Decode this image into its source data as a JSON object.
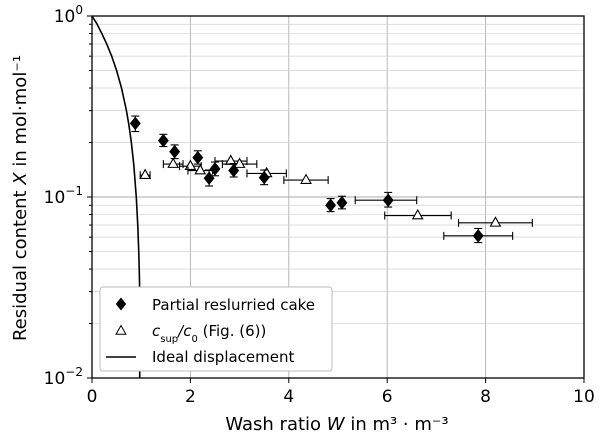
{
  "chart_data": {
    "type": "scatter",
    "x_axis": {
      "label_prefix": "Wash ratio ",
      "label_var": "W",
      "label_suffix": " in m³ · m⁻³",
      "scale": "linear",
      "lim": [
        0,
        10
      ],
      "ticks": [
        0,
        2,
        4,
        6,
        8,
        10
      ],
      "tick_labels": [
        "0",
        "2",
        "4",
        "6",
        "8",
        "10"
      ]
    },
    "y_axis": {
      "label_prefix": "Residual content ",
      "label_var": "X",
      "label_suffix": " in mol·mol⁻¹",
      "scale": "log",
      "lim": [
        0.01,
        1
      ],
      "ticks": [
        0.01,
        0.1,
        1
      ],
      "tick_labels": [
        {
          "base": "10",
          "exp": "−2"
        },
        {
          "base": "10",
          "exp": "−1"
        },
        {
          "base": "10",
          "exp": "0"
        }
      ]
    },
    "grid": true,
    "legend_position": "lower-left",
    "series": [
      {
        "name": "Partial reslurried cake",
        "marker": "filled-diamond",
        "color": "#000000",
        "points": [
          {
            "x": 0.88,
            "y": 0.255,
            "ylo": 0.23,
            "yhi": 0.28
          },
          {
            "x": 1.45,
            "y": 0.205,
            "ylo": 0.19,
            "yhi": 0.222
          },
          {
            "x": 1.68,
            "y": 0.178,
            "ylo": 0.163,
            "yhi": 0.194
          },
          {
            "x": 2.15,
            "y": 0.165,
            "ylo": 0.152,
            "yhi": 0.18
          },
          {
            "x": 2.38,
            "y": 0.127,
            "ylo": 0.115,
            "yhi": 0.141
          },
          {
            "x": 2.5,
            "y": 0.143,
            "ylo": 0.131,
            "yhi": 0.156
          },
          {
            "x": 2.88,
            "y": 0.14,
            "ylo": 0.129,
            "yhi": 0.153
          },
          {
            "x": 3.5,
            "y": 0.128,
            "ylo": 0.117,
            "yhi": 0.141
          },
          {
            "x": 4.85,
            "y": 0.09,
            "ylo": 0.083,
            "yhi": 0.098
          },
          {
            "x": 5.08,
            "y": 0.093,
            "ylo": 0.086,
            "yhi": 0.101
          },
          {
            "x": 6.02,
            "y": 0.096,
            "ylo": 0.088,
            "yhi": 0.106,
            "xlo": 5.35,
            "xhi": 6.6
          },
          {
            "x": 7.85,
            "y": 0.061,
            "ylo": 0.056,
            "yhi": 0.067,
            "xlo": 7.15,
            "xhi": 8.55
          }
        ]
      },
      {
        "name_base": "c",
        "name_sub1": "sup",
        "name_mid": "/c",
        "name_sub2": "0",
        "name_suffix": " (Fig. (6))",
        "marker": "open-triangle",
        "color": "#000000",
        "points": [
          {
            "x": 1.08,
            "y": 0.132,
            "xlo": 0.98,
            "xhi": 1.18
          },
          {
            "x": 1.65,
            "y": 0.152,
            "xlo": 1.45,
            "xhi": 1.85
          },
          {
            "x": 2.0,
            "y": 0.148,
            "xlo": 1.78,
            "xhi": 2.22
          },
          {
            "x": 2.2,
            "y": 0.14,
            "xlo": 1.95,
            "xhi": 2.45
          },
          {
            "x": 2.82,
            "y": 0.158,
            "xlo": 2.5,
            "xhi": 3.15
          },
          {
            "x": 3.0,
            "y": 0.152,
            "xlo": 2.65,
            "xhi": 3.35
          },
          {
            "x": 3.55,
            "y": 0.135,
            "xlo": 3.15,
            "xhi": 3.95
          },
          {
            "x": 4.35,
            "y": 0.124,
            "xlo": 3.9,
            "xhi": 4.8
          },
          {
            "x": 6.62,
            "y": 0.079,
            "xlo": 5.95,
            "xhi": 7.3
          },
          {
            "x": 8.2,
            "y": 0.072,
            "xlo": 7.45,
            "xhi": 8.95
          }
        ]
      },
      {
        "name": "Ideal displacement",
        "marker": "line",
        "color": "#000000",
        "points": [
          {
            "x": 0.0,
            "y": 1.0
          },
          {
            "x": 0.1,
            "y": 0.905
          },
          {
            "x": 0.2,
            "y": 0.8
          },
          {
            "x": 0.3,
            "y": 0.7
          },
          {
            "x": 0.4,
            "y": 0.6
          },
          {
            "x": 0.5,
            "y": 0.5
          },
          {
            "x": 0.6,
            "y": 0.4
          },
          {
            "x": 0.7,
            "y": 0.3
          },
          {
            "x": 0.75,
            "y": 0.25
          },
          {
            "x": 0.8,
            "y": 0.2
          },
          {
            "x": 0.85,
            "y": 0.15
          },
          {
            "x": 0.9,
            "y": 0.1
          },
          {
            "x": 0.93,
            "y": 0.07
          },
          {
            "x": 0.95,
            "y": 0.05
          },
          {
            "x": 0.96,
            "y": 0.04
          },
          {
            "x": 0.97,
            "y": 0.03
          }
        ]
      }
    ]
  }
}
